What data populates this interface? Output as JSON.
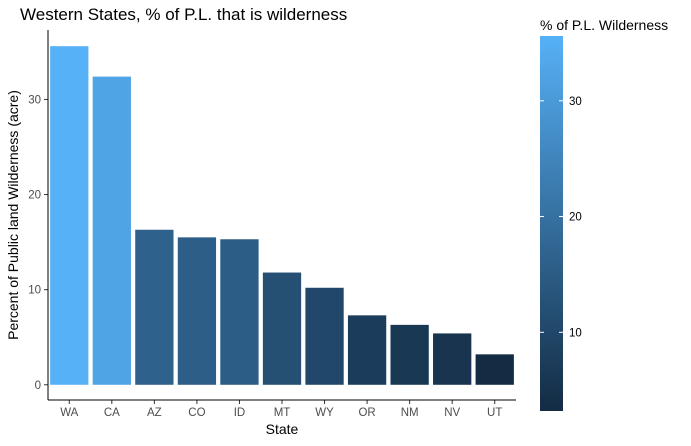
{
  "chart_data": {
    "type": "bar",
    "title": "Western States, % of P.L. that is wilderness",
    "xlabel": "State",
    "ylabel": "Percent of Public land Wilderness (acre)",
    "categories": [
      "WA",
      "CA",
      "AZ",
      "CO",
      "ID",
      "MT",
      "WY",
      "OR",
      "NM",
      "NV",
      "UT"
    ],
    "values": [
      35.6,
      32.4,
      16.3,
      15.5,
      15.3,
      11.8,
      10.2,
      7.3,
      6.3,
      5.4,
      3.2
    ],
    "ylim": [
      -1.6,
      37.3
    ],
    "y_ticks": [
      0,
      10,
      20,
      30
    ],
    "grid": false,
    "legend": {
      "title": "% of P.L. Wilderness",
      "position": "right",
      "type": "colorbar",
      "range": [
        3.2,
        35.6
      ],
      "ticks": [
        10,
        20,
        30
      ],
      "low_color": "#132b43",
      "high_color": "#56b1f7"
    },
    "bar_color_low": "#132b43",
    "bar_color_high": "#56b1f7"
  }
}
